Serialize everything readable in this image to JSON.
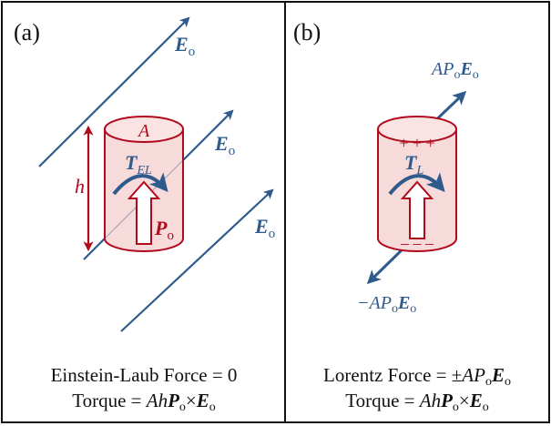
{
  "panels": [
    {
      "label": "(a)",
      "field_label": {
        "symbol": "E",
        "sub": "o"
      },
      "cylinder_label": "A",
      "height_label": "h",
      "torque_label": {
        "symbol": "T",
        "sub": "EL"
      },
      "polarization_label": {
        "symbol": "P",
        "sub": "o"
      },
      "caption_line1": "Einstein-Laub Force = 0",
      "caption_line2": "Torque = AhPo×Eo"
    },
    {
      "label": "(b)",
      "top_charge": "+ + +",
      "bottom_charge": "– – –",
      "torque_label": {
        "symbol": "T",
        "sub": "L"
      },
      "force_top_label": {
        "pre": "AP",
        "sub1": "o",
        "bold": "E",
        "sub2": "o"
      },
      "force_bottom_label": {
        "pre": "−AP",
        "sub1": "o",
        "bold": "E",
        "sub2": "o"
      },
      "caption_line1": "Lorentz Force = ±APoEo",
      "caption_line2": "Torque = AhPo×Eo"
    }
  ],
  "colors": {
    "field": "#2e5a8c",
    "cylinder": "#b00a1c",
    "cylinder_fill": "#f7dada",
    "frame": "#111111"
  }
}
